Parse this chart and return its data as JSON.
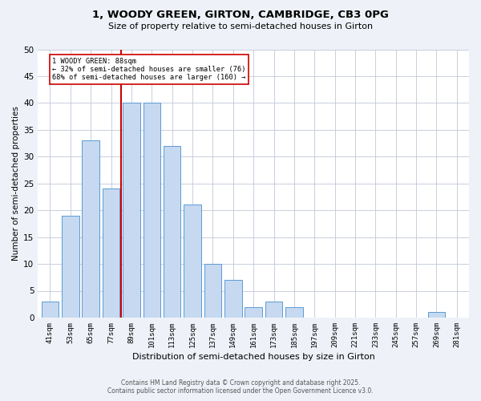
{
  "title_line1": "1, WOODY GREEN, GIRTON, CAMBRIDGE, CB3 0PG",
  "title_line2": "Size of property relative to semi-detached houses in Girton",
  "xlabel": "Distribution of semi-detached houses by size in Girton",
  "ylabel": "Number of semi-detached properties",
  "categories": [
    "41sqm",
    "53sqm",
    "65sqm",
    "77sqm",
    "89sqm",
    "101sqm",
    "113sqm",
    "125sqm",
    "137sqm",
    "149sqm",
    "161sqm",
    "173sqm",
    "185sqm",
    "197sqm",
    "209sqm",
    "221sqm",
    "233sqm",
    "245sqm",
    "257sqm",
    "269sqm",
    "281sqm"
  ],
  "values": [
    3,
    19,
    33,
    24,
    40,
    40,
    32,
    21,
    10,
    7,
    2,
    3,
    2,
    0,
    0,
    0,
    0,
    0,
    0,
    1,
    0
  ],
  "bar_color": "#c6d9f0",
  "bar_edge_color": "#5b9bd5",
  "property_label": "1 WOODY GREEN: 88sqm",
  "pct_smaller": 32,
  "pct_larger": 68,
  "n_smaller": 76,
  "n_larger": 160,
  "vline_color": "#cc0000",
  "annotation_box_color": "#cc0000",
  "ylim": [
    0,
    50
  ],
  "yticks": [
    0,
    5,
    10,
    15,
    20,
    25,
    30,
    35,
    40,
    45,
    50
  ],
  "footer_line1": "Contains HM Land Registry data © Crown copyright and database right 2025.",
  "footer_line2": "Contains public sector information licensed under the Open Government Licence v3.0.",
  "bg_color": "#eef2f8",
  "plot_bg_color": "#ffffff"
}
